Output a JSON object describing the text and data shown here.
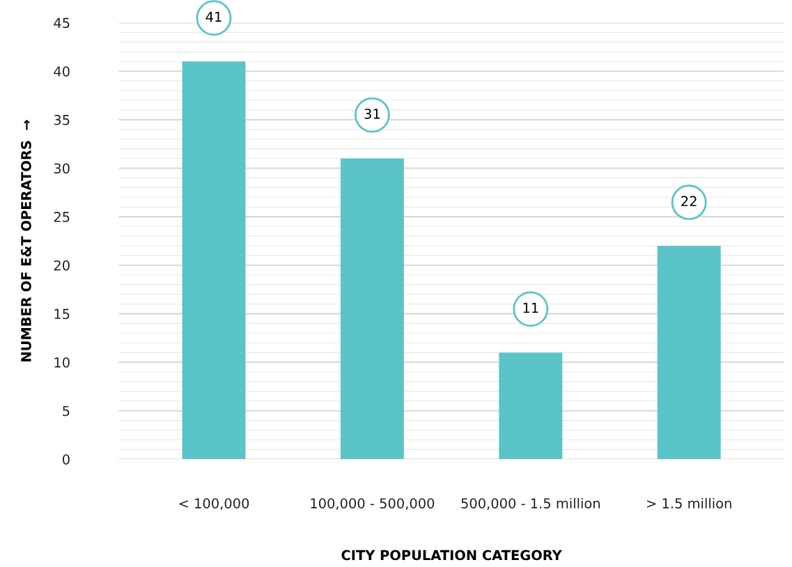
{
  "chart_data": {
    "type": "bar",
    "xlabel": "CITY POPULATION CATEGORY",
    "ylabel": "NUMBER OF E&T OPERATORS  →",
    "categories": [
      "< 100,000",
      "100,000 - 500,000",
      "500,000 - 1.5 million",
      "> 1.5 million"
    ],
    "values": [
      41,
      31,
      11,
      22
    ],
    "color": "#5bc4c9",
    "ylim": [
      0,
      45
    ],
    "yticks": [
      0,
      5,
      10,
      15,
      20,
      25,
      30,
      35,
      40,
      45
    ],
    "grid": "y",
    "data_labels": true
  }
}
